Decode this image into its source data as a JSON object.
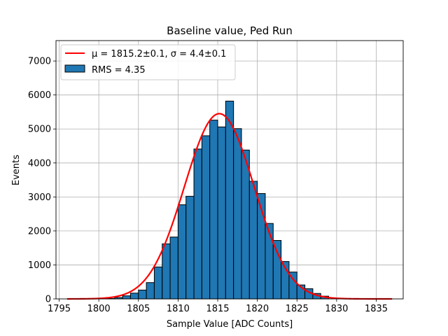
{
  "chart_data": {
    "type": "bar",
    "title": "Baseline value, Ped Run",
    "xlabel": "Sample Value [ADC Counts]",
    "ylabel": "Events",
    "xlim": [
      1794.6,
      1838.4
    ],
    "ylim": [
      0,
      7600
    ],
    "x_ticks": [
      1795,
      1800,
      1805,
      1810,
      1815,
      1820,
      1825,
      1830,
      1835
    ],
    "y_ticks": [
      0,
      1000,
      2000,
      3000,
      4000,
      5000,
      6000,
      7000
    ],
    "grid": true,
    "bin_width": 1,
    "histogram": {
      "name": "RMS = 4.35",
      "color": "#1f77b4",
      "edge_color": "#000000",
      "bin_left_edges": [
        1801,
        1802,
        1803,
        1804,
        1805,
        1806,
        1807,
        1808,
        1809,
        1810,
        1811,
        1812,
        1813,
        1814,
        1815,
        1816,
        1817,
        1818,
        1819,
        1820,
        1821,
        1822,
        1823,
        1824,
        1825,
        1826,
        1827,
        1828
      ],
      "values": [
        10,
        40,
        90,
        170,
        260,
        480,
        940,
        1620,
        1820,
        2770,
        3020,
        4410,
        4800,
        5260,
        5060,
        5820,
        5010,
        4380,
        3460,
        3100,
        2220,
        1720,
        1100,
        790,
        410,
        300,
        160,
        80
      ]
    },
    "fit": {
      "name": "$\\mu = 1815.2$±0.1, $\\sigma = 4.4$±0.1",
      "color": "#ff0000",
      "type": "gaussian",
      "mean": 1815.2,
      "sigma": 4.4,
      "amplitude": 5450,
      "x_range": [
        1796,
        1837
      ]
    },
    "legend": {
      "placement": "top-left",
      "entries": [
        {
          "kind": "line",
          "label": "μ = 1815.2±0.1, σ = 4.4±0.1"
        },
        {
          "kind": "patch",
          "label": "RMS = 4.35"
        }
      ]
    }
  }
}
